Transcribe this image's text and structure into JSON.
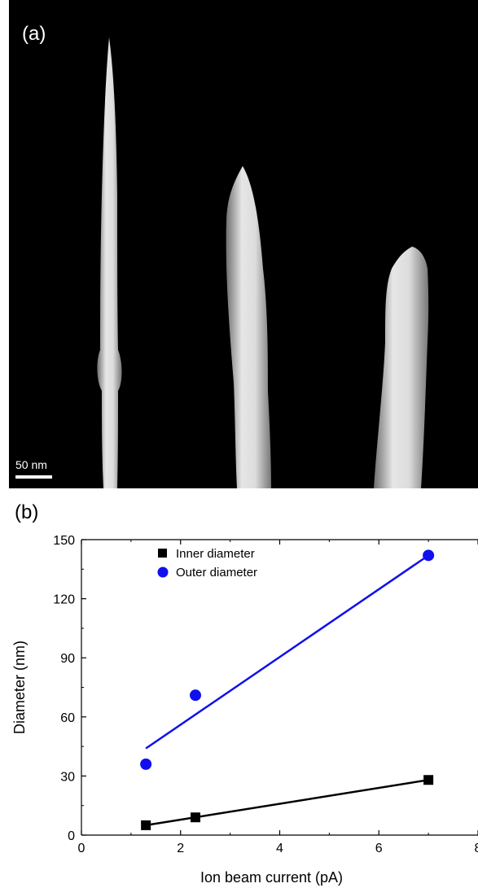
{
  "panel_a": {
    "label": "(a)",
    "scale_bar_text": "50 nm"
  },
  "panel_b": {
    "label": "(b)"
  },
  "chart_data": {
    "type": "scatter",
    "xlabel": "Ion beam current (pA)",
    "ylabel": "Diameter (nm)",
    "xlim": [
      0,
      8
    ],
    "ylim": [
      0,
      150
    ],
    "xticks": [
      "0",
      "2",
      "4",
      "6",
      "8"
    ],
    "yticks": [
      "0",
      "30",
      "60",
      "90",
      "120",
      "150"
    ],
    "grid": false,
    "legend_position": "top-left",
    "series": [
      {
        "name": "Inner diameter",
        "marker": "square",
        "color": "#000000",
        "x": [
          1.3,
          2.3,
          7.0
        ],
        "y": [
          5,
          9,
          28
        ],
        "fit": [
          [
            1.3,
            5
          ],
          [
            7.0,
            28
          ]
        ]
      },
      {
        "name": "Outer diameter",
        "marker": "circle",
        "color": "#1010ee",
        "x": [
          1.3,
          2.3,
          7.0
        ],
        "y": [
          36,
          71,
          142
        ],
        "fit": [
          [
            1.3,
            44
          ],
          [
            7.0,
            142
          ]
        ]
      }
    ]
  }
}
